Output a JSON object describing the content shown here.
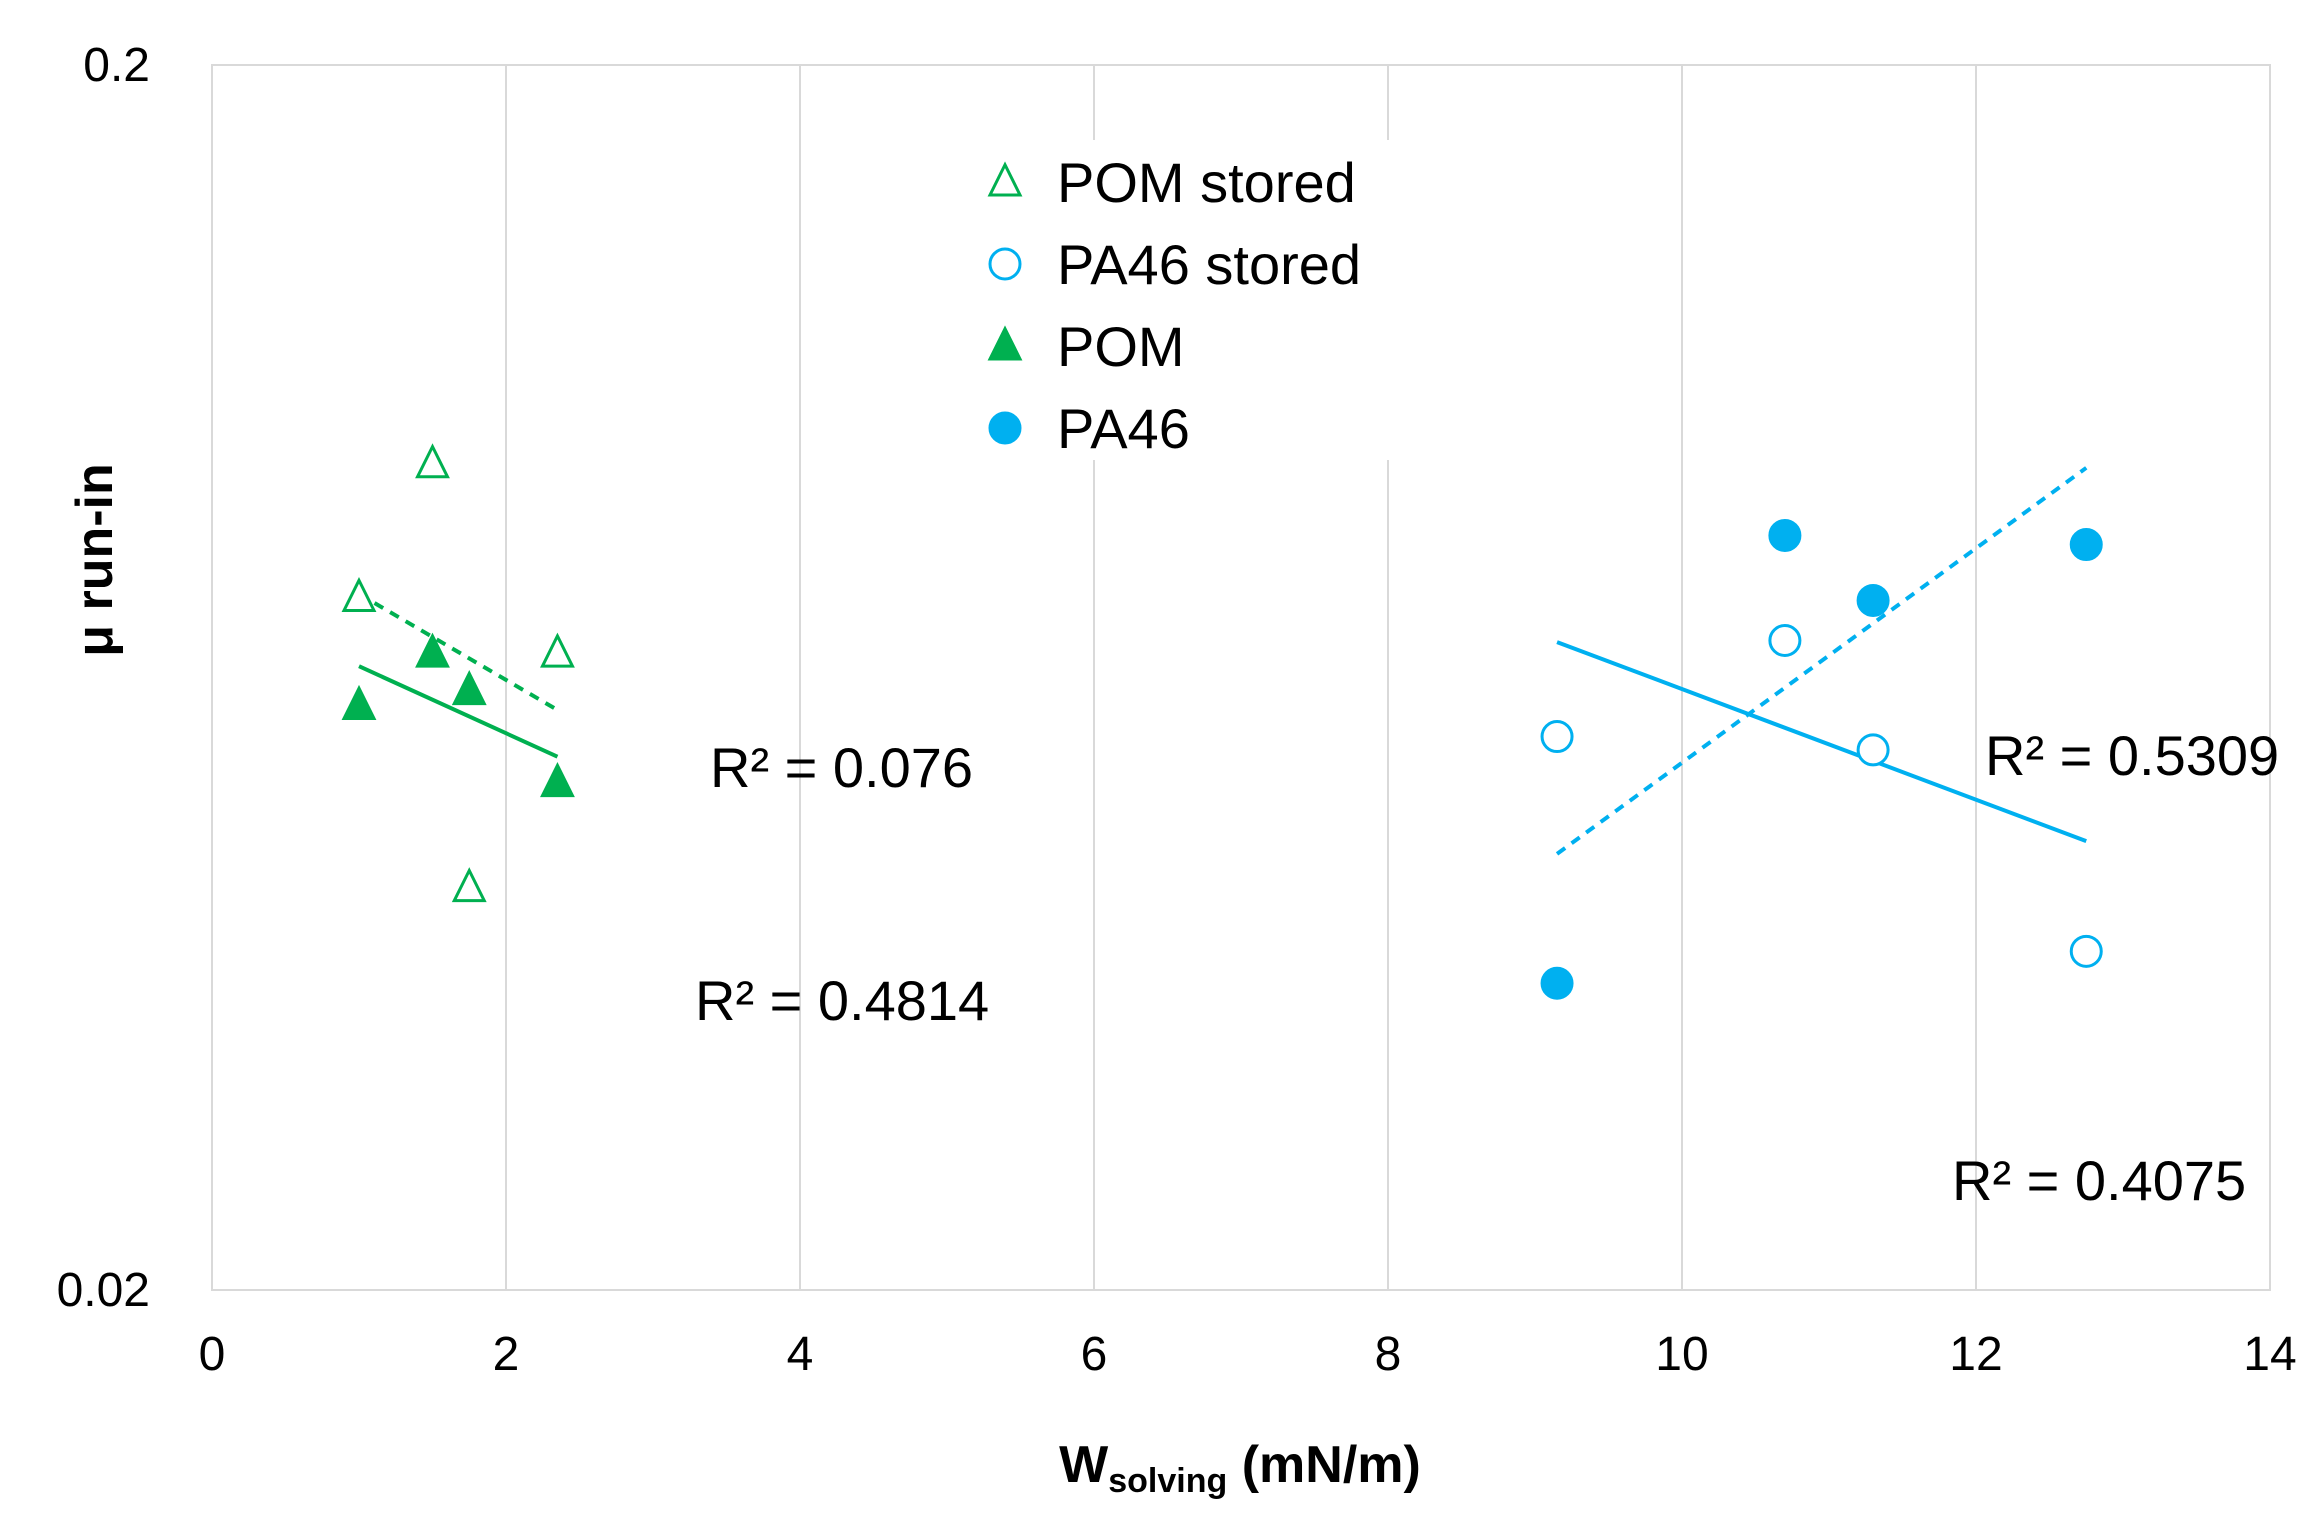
{
  "chart_data": {
    "type": "scatter",
    "title": "",
    "xlabel_main": "W",
    "xlabel_sub": "solving",
    "xlabel_rest": " (mN/m)",
    "ylabel": "μ run-in",
    "xlim": [
      0,
      14
    ],
    "ylim": [
      0.02,
      0.2
    ],
    "yscale": "log",
    "x_ticks": [
      0,
      2,
      4,
      6,
      8,
      10,
      12,
      14
    ],
    "y_ticks": [
      0.02,
      0.2
    ],
    "y_tick_labels": [
      "0.02",
      "0.2"
    ],
    "grid": "vertical",
    "legend_position": "top-center",
    "colors": {
      "pom": "#00b050",
      "pa46": "#00b0f0",
      "grid": "#d9d9d9"
    },
    "series": [
      {
        "name": "POM stored",
        "marker": "triangle-open",
        "color": "#00b050",
        "points": [
          [
            1.0,
            0.0735
          ],
          [
            1.5,
            0.0945
          ],
          [
            1.75,
            0.0426
          ],
          [
            2.35,
            0.0662
          ]
        ],
        "trendline": {
          "x": [
            1.0,
            2.35
          ],
          "y": [
            0.074,
            0.0595
          ],
          "style": "dashed"
        }
      },
      {
        "name": "PA46 stored",
        "marker": "circle-open",
        "color": "#00b0f0",
        "points": [
          [
            9.15,
            0.0566
          ],
          [
            10.7,
            0.0678
          ],
          [
            11.3,
            0.0552
          ],
          [
            12.75,
            0.0378
          ]
        ],
        "trendline": {
          "x": [
            9.15,
            12.75
          ],
          "y": [
            0.0676
          ],
          "style": "solid",
          "y_end": 0.0465
        }
      },
      {
        "name": "POM",
        "marker": "triangle-filled",
        "color": "#00b050",
        "points": [
          [
            1.0,
            0.06
          ],
          [
            1.5,
            0.0662
          ],
          [
            1.75,
            0.0617
          ],
          [
            2.35,
            0.0519
          ]
        ],
        "trendline": {
          "x": [
            1.0,
            2.35
          ],
          "y": [
            0.0646
          ],
          "style": "solid",
          "y_end": 0.0545
        }
      },
      {
        "name": "PA46",
        "marker": "circle-filled",
        "color": "#00b0f0",
        "points": [
          [
            9.15,
            0.0356
          ],
          [
            10.7,
            0.0826
          ],
          [
            11.3,
            0.0731
          ],
          [
            12.75,
            0.0812
          ]
        ],
        "trendline": {
          "x": [
            9.15,
            12.75
          ],
          "y": [
            0.0454
          ],
          "style": "dashed",
          "y_end": 0.0938
        }
      }
    ],
    "annotations": [
      {
        "text": "R² = 0.076"
      },
      {
        "text": "R² = 0.4814"
      },
      {
        "text": "R² = 0.5309"
      },
      {
        "text": "R² = 0.4075"
      }
    ]
  }
}
